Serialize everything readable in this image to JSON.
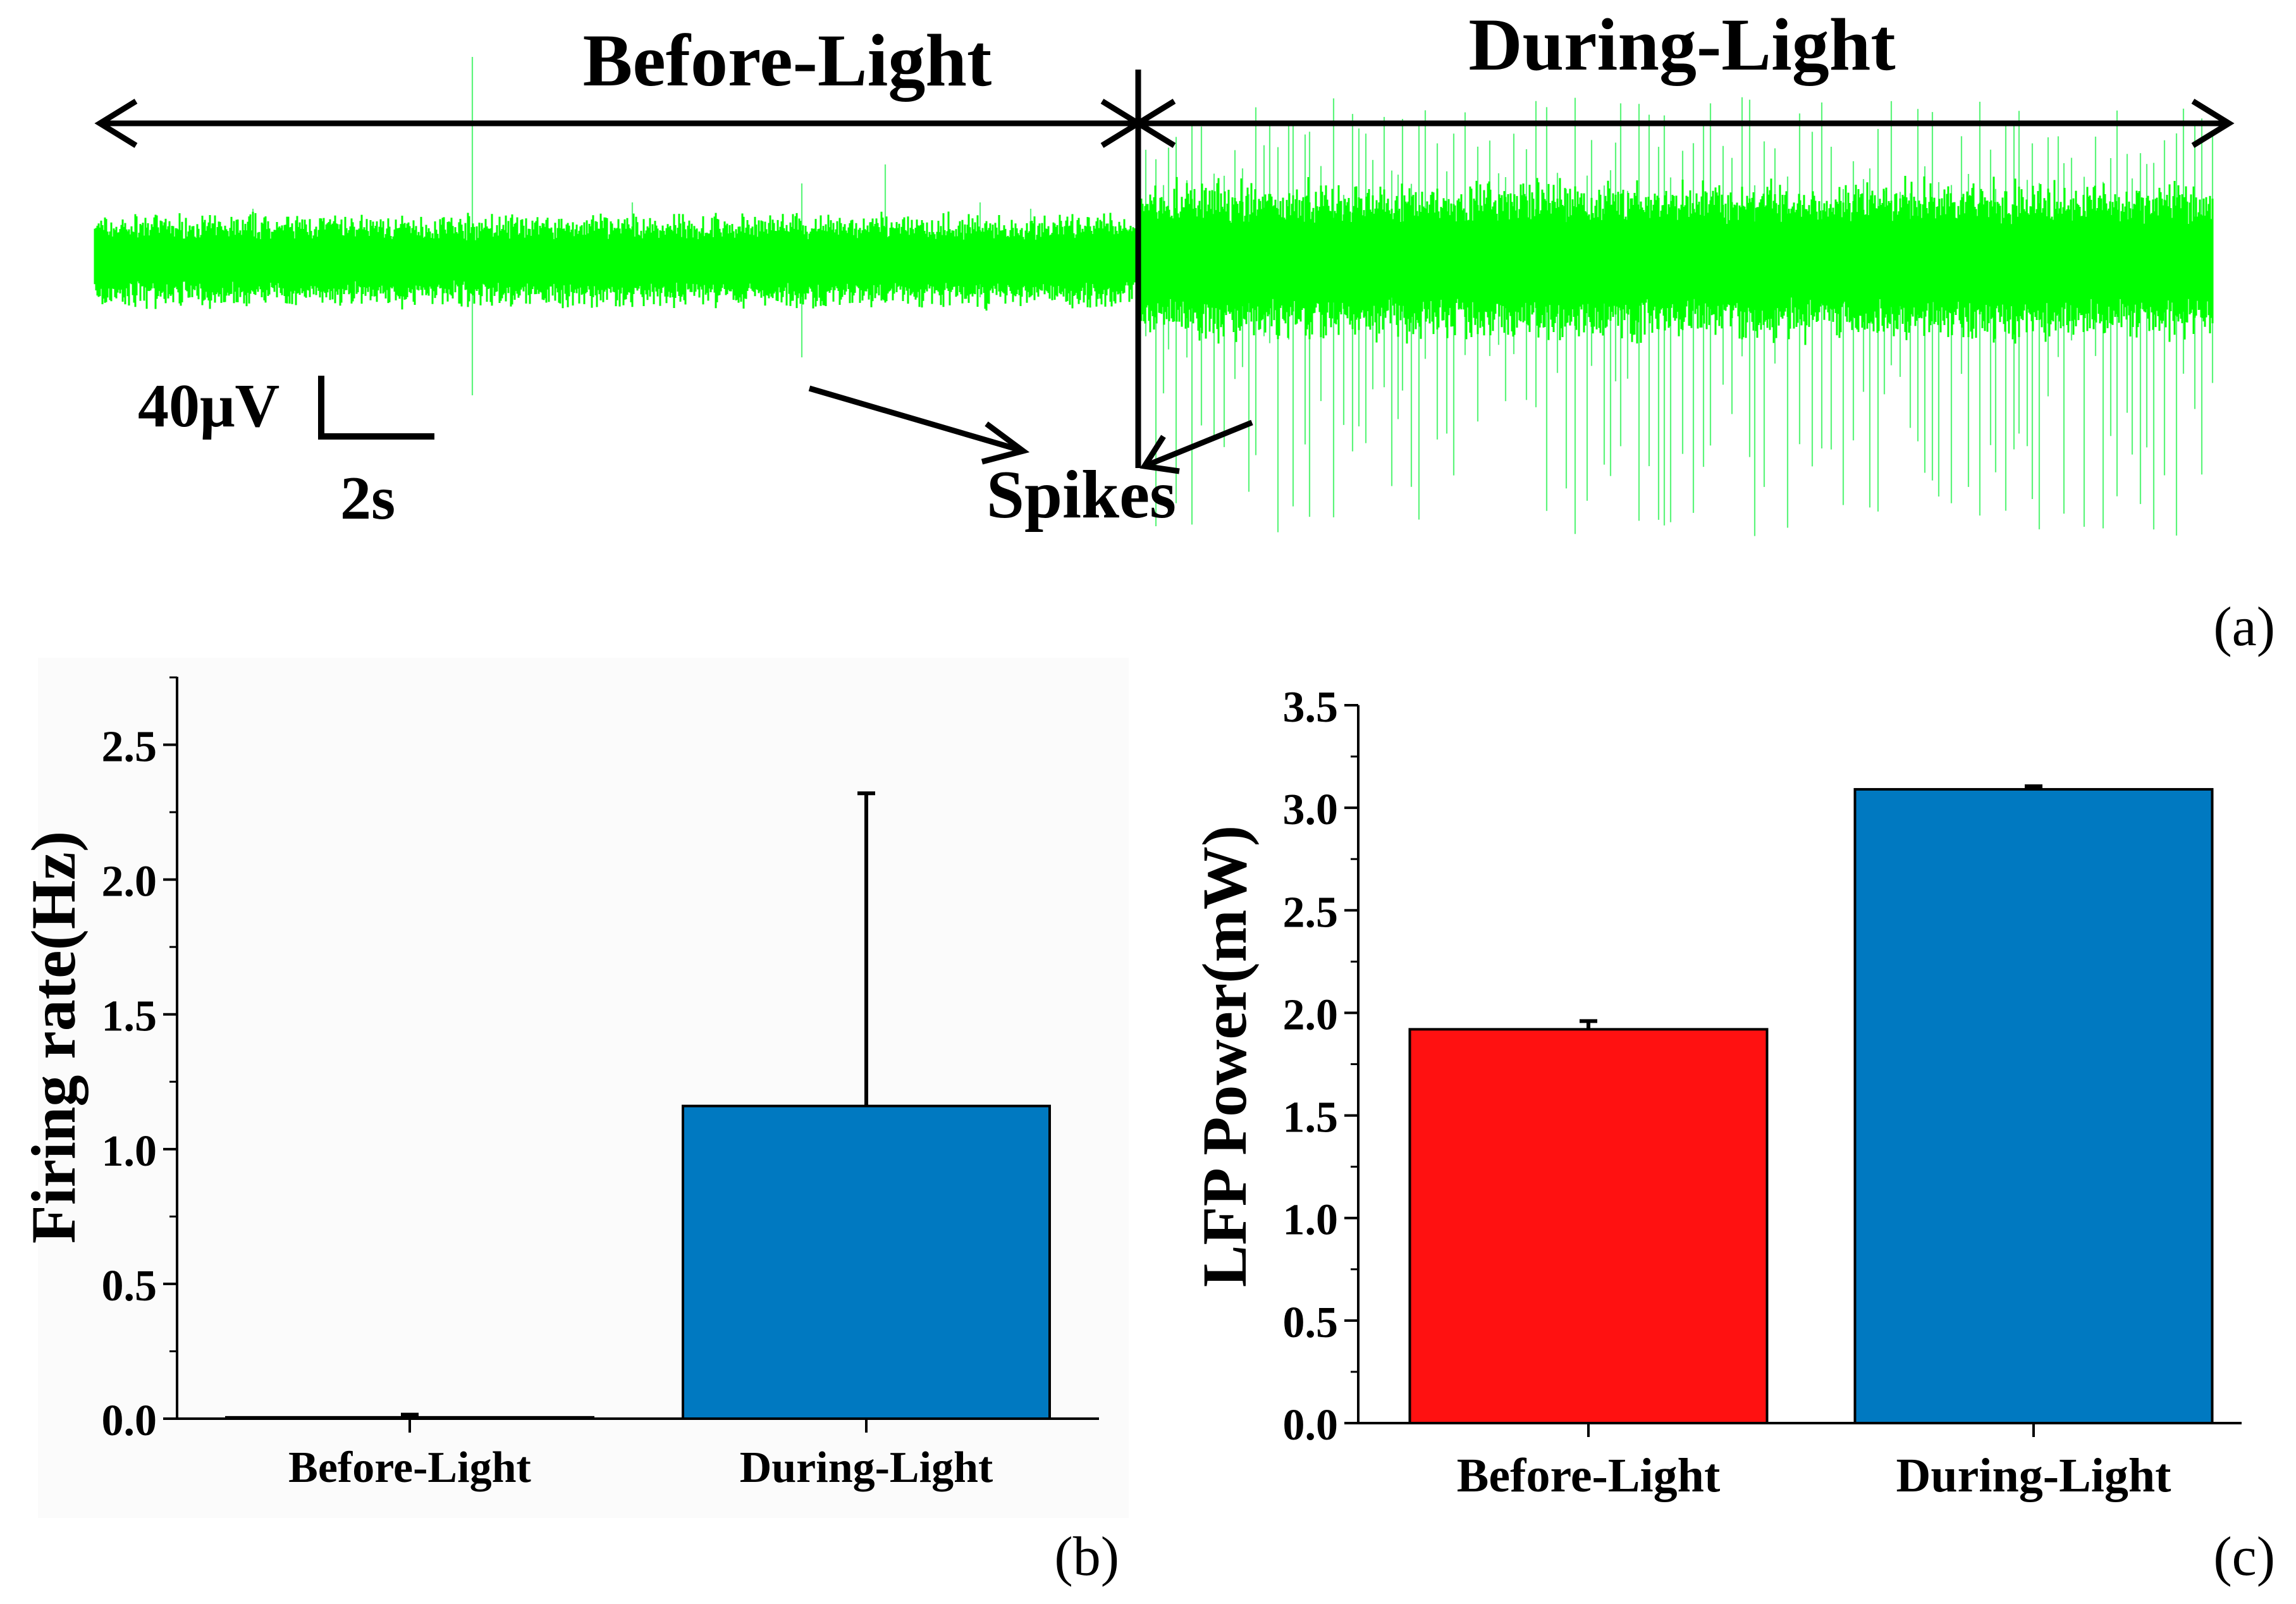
{
  "panels": {
    "a": "(a)",
    "b": "(b)",
    "c": "(c)"
  },
  "trace": {
    "before_label": "Before-Light",
    "during_label": "During-Light",
    "spikes_label": "Spikes",
    "scale_voltage": "40μV",
    "scale_time": "2s",
    "color": "#00ff00",
    "spike_color": "#5cf57a"
  },
  "chart_data": [
    {
      "type": "bar",
      "panel": "b",
      "categories": [
        "Before-Light",
        "During-Light"
      ],
      "values": [
        0.005,
        1.16
      ],
      "errors": [
        0.01,
        1.16
      ],
      "bar_colors": [
        "#ff1111",
        "#0079c1"
      ],
      "ylabel": "Firing rate(Hz)",
      "ylim": [
        0,
        2.75
      ],
      "yticks": [
        0.0,
        0.5,
        1.0,
        1.5,
        2.0,
        2.5
      ],
      "ytick_labels": [
        "0.0",
        "0.5",
        "1.0",
        "1.5",
        "2.0",
        "2.5"
      ]
    },
    {
      "type": "bar",
      "panel": "c",
      "categories": [
        "Before-Light",
        "During-Light"
      ],
      "values": [
        1.92,
        3.09
      ],
      "errors": [
        0.04,
        0.015
      ],
      "bar_colors": [
        "#ff1111",
        "#0079c1"
      ],
      "ylabel": "LFP Power(mW)",
      "ylim": [
        0,
        3.5
      ],
      "yticks": [
        0.0,
        0.5,
        1.0,
        1.5,
        2.0,
        2.5,
        3.0,
        3.5
      ],
      "ytick_labels": [
        "0.0",
        "0.5",
        "1.0",
        "1.5",
        "2.0",
        "2.5",
        "3.0",
        "3.5"
      ]
    }
  ]
}
